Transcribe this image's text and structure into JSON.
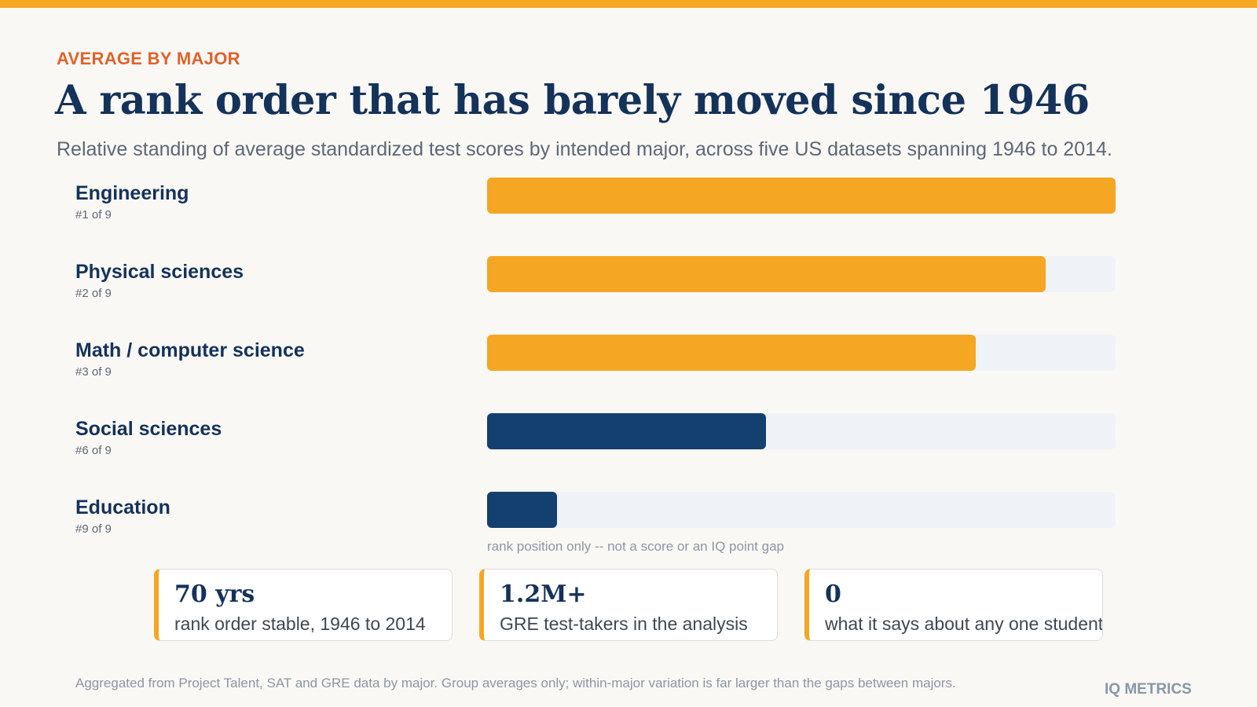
{
  "header": {
    "eyebrow": "AVERAGE BY MAJOR",
    "title": "A rank order that has barely moved since 1946",
    "subtitle": "Relative standing of average standardized test scores by intended major, across five US datasets spanning 1946 to 2014."
  },
  "chart_data": {
    "type": "bar",
    "orientation": "horizontal",
    "categories": [
      "Engineering",
      "Physical sciences",
      "Math / computer science",
      "Social sciences",
      "Education"
    ],
    "rank_labels": [
      "#1 of 9",
      "#2 of 9",
      "#3 of 9",
      "#6 of 9",
      "#9 of 9"
    ],
    "ranks": [
      1,
      2,
      3,
      6,
      9
    ],
    "total": 9,
    "values": [
      1.0,
      0.889,
      0.778,
      0.444,
      0.111
    ],
    "value_scale": "fraction of track (rank position)",
    "xlim": [
      0,
      1
    ],
    "colors": [
      "#f5a623",
      "#f5a623",
      "#f5a623",
      "#14406f",
      "#14406f"
    ],
    "track_color": "#eff3f8",
    "axis_note": "rank position only -- not a score or an IQ point gap"
  },
  "stats": [
    {
      "value": "70 yrs",
      "description": "rank order stable, 1946 to 2014"
    },
    {
      "value": "1.2M+",
      "description": "GRE test-takers in the analysis"
    },
    {
      "value": "0",
      "description": "what it says about any one student"
    }
  ],
  "footnote": "Aggregated from Project Talent, SAT and GRE data by major. Group averages only; within-major variation is far larger than the gaps between majors.",
  "brand": "IQ METRICS",
  "colors": {
    "accent": "#f5a623",
    "eyebrow": "#e0622b",
    "navy": "#14325a",
    "bar_dark": "#14406f"
  }
}
